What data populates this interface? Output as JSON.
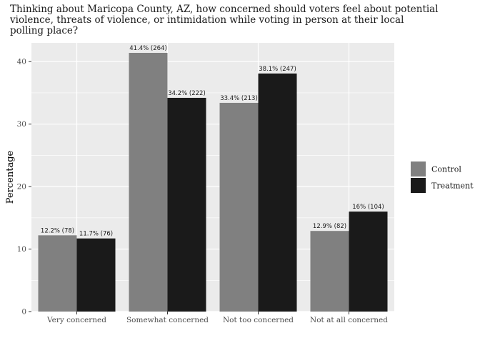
{
  "chart_data": {
    "type": "bar",
    "title_lines": [
      "Thinking about Maricopa County, AZ, how concerned should voters feel about potential",
      "violence, threats of violence, or intimidation while voting in person at their local",
      "polling place?"
    ],
    "xlabel": "",
    "ylabel": "Percentage",
    "ylim": [
      0,
      43
    ],
    "y_ticks": [
      0,
      10,
      20,
      30,
      40
    ],
    "grid": true,
    "legend_position": "right",
    "categories": [
      "Very concerned",
      "Somewhat concerned",
      "Not too concerned",
      "Not at all concerned"
    ],
    "series": [
      {
        "name": "Control",
        "color": "#808080",
        "values": [
          12.2,
          41.4,
          33.4,
          12.9
        ],
        "labels": [
          "12.2% (78)",
          "41.4% (264)",
          "33.4% (213)",
          "12.9% (82)"
        ]
      },
      {
        "name": "Treatment",
        "color": "#1a1a1a",
        "values": [
          11.7,
          34.2,
          38.1,
          16
        ],
        "labels": [
          "11.7% (76)",
          "34.2% (222)",
          "38.1% (247)",
          "16% (104)"
        ]
      }
    ]
  }
}
